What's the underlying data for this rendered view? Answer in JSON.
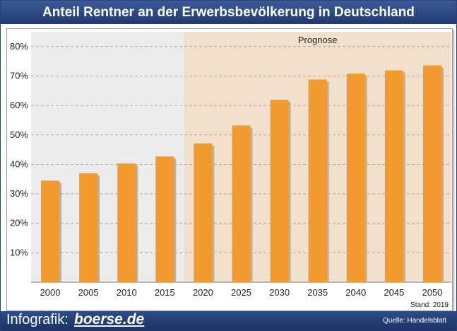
{
  "header": {
    "title": "Anteil Rentner an der Erwerbsbevölkerung in Deutschland"
  },
  "chart_data": {
    "type": "bar",
    "categories": [
      "2000",
      "2005",
      "2010",
      "2015",
      "2020",
      "2025",
      "2030",
      "2035",
      "2040",
      "2045",
      "2050"
    ],
    "values": [
      34.5,
      37,
      40.3,
      42.7,
      47.1,
      53.2,
      61.9,
      68.8,
      70.8,
      71.9,
      73.6
    ],
    "ylim": [
      0,
      85
    ],
    "yticks": [
      10,
      20,
      30,
      40,
      50,
      60,
      70,
      80
    ],
    "ytick_labels": [
      "10%",
      "20%",
      "30%",
      "40%",
      "50%",
      "60%",
      "70%",
      "80%"
    ],
    "grid": true,
    "forecast_label": "Prognose",
    "forecast_from_category": "2020",
    "note": "Stand: 2019",
    "colors": {
      "bar": "#f29a2e",
      "forecast_bg": "#f0e0cc",
      "history_bg": "#ececec"
    }
  },
  "footer": {
    "label": "Infografik:",
    "brand": "boerse.de",
    "source": "Quelle: Handelsblatt"
  }
}
